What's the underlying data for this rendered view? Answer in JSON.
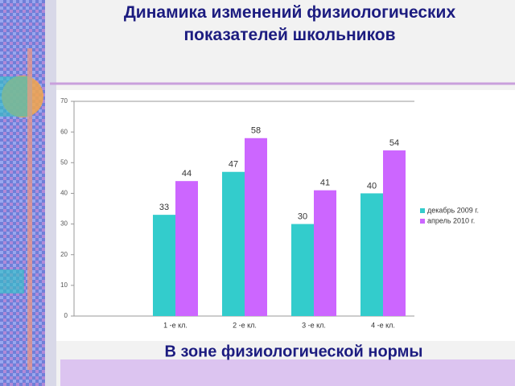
{
  "chart_data": {
    "type": "bar",
    "title": "Динамика изменений физиологических показателей школьников",
    "annotation": "В зоне физиологической нормы",
    "categories": [
      null,
      "1 -е кл.",
      "2 -е кл.",
      "3 -е кл.",
      "4 -е кл."
    ],
    "series": [
      {
        "name": "декабрь 2009 г.",
        "color": "#33cccc",
        "values": [
          null,
          33,
          47,
          30,
          40
        ]
      },
      {
        "name": "апрель 2010 г.",
        "color": "#cc66ff",
        "values": [
          null,
          44,
          58,
          41,
          54
        ]
      }
    ],
    "ylim": [
      0,
      70
    ],
    "yticks": [
      0,
      10,
      20,
      30,
      40,
      50,
      60,
      70
    ],
    "grid": false,
    "legend": "right"
  }
}
